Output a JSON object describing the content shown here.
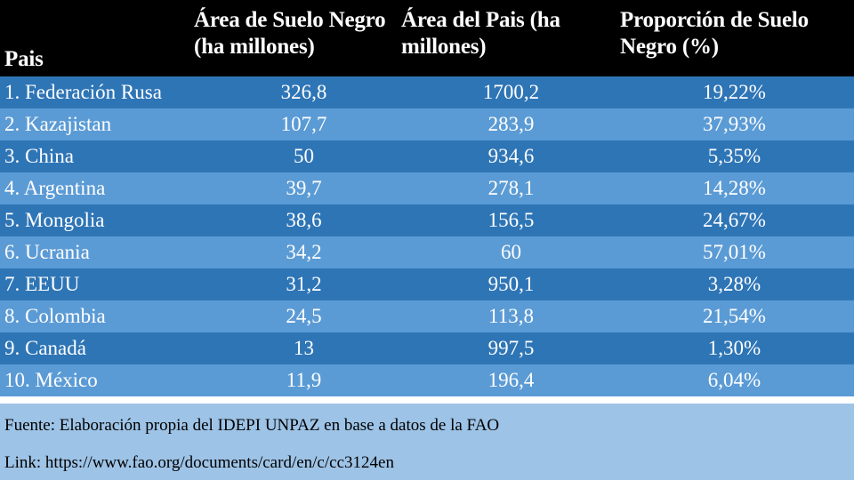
{
  "chart_data": {
    "type": "table",
    "columns": [
      "Pais",
      "Área de Suelo Negro (ha millones)",
      "Área del Pais (ha millones)",
      "Proporción de Suelo Negro (%)"
    ],
    "rows": [
      [
        "1. Federación Rusa",
        "326,8",
        "1700,2",
        "19,22%"
      ],
      [
        "2. Kazajistan",
        "107,7",
        "283,9",
        "37,93%"
      ],
      [
        "3. China",
        "50",
        "934,6",
        "5,35%"
      ],
      [
        "4. Argentina",
        "39,7",
        "278,1",
        "14,28%"
      ],
      [
        "5. Mongolia",
        "38,6",
        "156,5",
        "24,67%"
      ],
      [
        "6. Ucrania",
        "34,2",
        "60",
        "57,01%"
      ],
      [
        "7. EEUU",
        "31,2",
        "950,1",
        "3,28%"
      ],
      [
        "8. Colombia",
        "24,5",
        "113,8",
        "21,54%"
      ],
      [
        "9. Canadá",
        "13",
        "997,5",
        "1,30%"
      ],
      [
        "10. México",
        "11,9",
        "196,4",
        "6,04%"
      ]
    ],
    "notes": [
      "Fuente: Elaboración propia del IDEPI UNPAZ en base a datos de la FAO",
      "Link: https://www.fao.org/documents/card/en/c/cc3124en"
    ]
  },
  "colors": {
    "header_bg": "#000000",
    "row_dark": "#2e75b6",
    "row_light": "#5b9bd5",
    "footer_bg": "#9dc3e6"
  }
}
